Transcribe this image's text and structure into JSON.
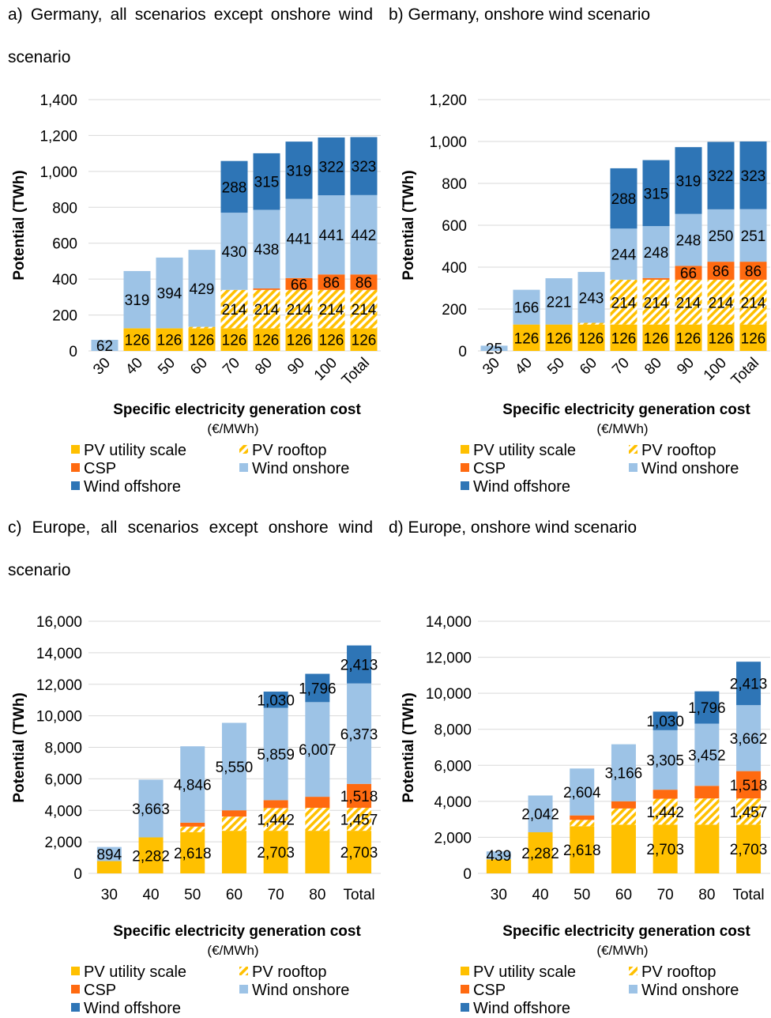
{
  "chart_data": [
    {
      "type": "bar",
      "stacked": true,
      "title": "a) Germany, all scenarios except onshore wind scenario",
      "xlabel": "Specific electricity generation cost",
      "xunit": "(€/MWh)",
      "ylabel": "Potential (TWh)",
      "ylim": [
        0,
        1400
      ],
      "ytick_step": 200,
      "yticks": [
        "0",
        "200",
        "400",
        "600",
        "800",
        "1,000",
        "1,200",
        "1,400"
      ],
      "tick_rotation": -45,
      "categories": [
        "30",
        "40",
        "50",
        "60",
        "70",
        "80",
        "90",
        "100",
        "Total"
      ],
      "series": [
        {
          "name": "PV utility scale",
          "values": [
            0,
            126,
            126,
            126,
            126,
            126,
            126,
            126,
            126
          ],
          "labels": [
            "",
            "126",
            "126",
            "126",
            "126",
            "126",
            "126",
            "126",
            "126"
          ]
        },
        {
          "name": "PV rooftop",
          "values": [
            0,
            0,
            0,
            8,
            214,
            214,
            214,
            214,
            214
          ],
          "labels": [
            "",
            "",
            "",
            "",
            "214",
            "214",
            "214",
            "214",
            "214"
          ]
        },
        {
          "name": "CSP",
          "values": [
            0,
            0,
            0,
            0,
            0,
            8,
            66,
            86,
            86
          ],
          "labels": [
            "",
            "",
            "",
            "",
            "",
            "",
            "66",
            "86",
            "86"
          ]
        },
        {
          "name": "Wind onshore",
          "values": [
            62,
            319,
            394,
            429,
            430,
            438,
            441,
            441,
            442
          ],
          "labels": [
            "62",
            "319",
            "394",
            "429",
            "430",
            "438",
            "441",
            "441",
            "442"
          ]
        },
        {
          "name": "Wind offshore",
          "values": [
            0,
            0,
            0,
            0,
            288,
            315,
            319,
            322,
            323
          ],
          "labels": [
            "",
            "",
            "",
            "",
            "288",
            "315",
            "319",
            "322",
            "323"
          ]
        }
      ]
    },
    {
      "type": "bar",
      "stacked": true,
      "title": "b) Germany, onshore wind scenario",
      "xlabel": "Specific electricity generation cost",
      "xunit": "(€/MWh)",
      "ylabel": "Potential (TWh)",
      "ylim": [
        0,
        1200
      ],
      "ytick_step": 200,
      "yticks": [
        "0",
        "200",
        "400",
        "600",
        "800",
        "1,000",
        "1,200"
      ],
      "tick_rotation": -45,
      "categories": [
        "30",
        "40",
        "50",
        "60",
        "70",
        "80",
        "90",
        "100",
        "Total"
      ],
      "series": [
        {
          "name": "PV utility scale",
          "values": [
            0,
            126,
            126,
            126,
            126,
            126,
            126,
            126,
            126
          ],
          "labels": [
            "",
            "126",
            "126",
            "126",
            "126",
            "126",
            "126",
            "126",
            "126"
          ]
        },
        {
          "name": "PV rooftop",
          "values": [
            0,
            0,
            0,
            8,
            214,
            214,
            214,
            214,
            214
          ],
          "labels": [
            "",
            "",
            "",
            "",
            "214",
            "214",
            "214",
            "214",
            "214"
          ]
        },
        {
          "name": "CSP",
          "values": [
            0,
            0,
            0,
            0,
            0,
            8,
            66,
            86,
            86
          ],
          "labels": [
            "",
            "",
            "",
            "",
            "",
            "",
            "66",
            "86",
            "86"
          ]
        },
        {
          "name": "Wind onshore",
          "values": [
            25,
            166,
            221,
            243,
            244,
            248,
            248,
            250,
            251
          ],
          "labels": [
            "25",
            "166",
            "221",
            "243",
            "244",
            "248",
            "248",
            "250",
            "251"
          ]
        },
        {
          "name": "Wind offshore",
          "values": [
            0,
            0,
            0,
            0,
            288,
            315,
            319,
            322,
            323
          ],
          "labels": [
            "",
            "",
            "",
            "",
            "288",
            "315",
            "319",
            "322",
            "323"
          ]
        }
      ]
    },
    {
      "type": "bar",
      "stacked": true,
      "title": "c) Europe, all scenarios except onshore wind scenario",
      "xlabel": "Specific electricity generation cost",
      "xunit": "(€/MWh)",
      "ylabel": "Potential (TWh)",
      "ylim": [
        0,
        16000
      ],
      "ytick_step": 2000,
      "yticks": [
        "0",
        "2,000",
        "4,000",
        "6,000",
        "8,000",
        "10,000",
        "12,000",
        "14,000",
        "16,000"
      ],
      "tick_rotation": 0,
      "categories": [
        "30",
        "40",
        "50",
        "60",
        "70",
        "80",
        "Total"
      ],
      "series": [
        {
          "name": "PV utility scale",
          "values": [
            780,
            2282,
            2618,
            2703,
            2703,
            2703,
            2703
          ],
          "labels": [
            "",
            "2,282",
            "2,618",
            "",
            "2,703",
            "",
            "2,703"
          ]
        },
        {
          "name": "PV rooftop",
          "values": [
            0,
            0,
            350,
            900,
            1442,
            1457,
            1457
          ],
          "labels": [
            "",
            "",
            "",
            "",
            "1,442",
            "",
            "1,457"
          ]
        },
        {
          "name": "CSP",
          "values": [
            0,
            0,
            250,
            400,
            500,
            700,
            1518
          ],
          "labels": [
            "",
            "",
            "",
            "",
            "",
            "",
            "1,518"
          ]
        },
        {
          "name": "Wind onshore",
          "values": [
            894,
            3663,
            4846,
            5550,
            5859,
            6007,
            6373
          ],
          "labels": [
            "894",
            "3,663",
            "4,846",
            "5,550",
            "5,859",
            "6,007",
            "6,373"
          ]
        },
        {
          "name": "Wind offshore",
          "values": [
            0,
            0,
            0,
            0,
            1030,
            1796,
            2413
          ],
          "labels": [
            "",
            "",
            "",
            "",
            "1,030",
            "1,796",
            "2,413"
          ]
        }
      ]
    },
    {
      "type": "bar",
      "stacked": true,
      "title": "d) Europe, onshore wind scenario",
      "xlabel": "Specific electricity generation cost",
      "xunit": "(€/MWh)",
      "ylabel": "Potential (TWh)",
      "ylim": [
        0,
        14000
      ],
      "ytick_step": 2000,
      "yticks": [
        "0",
        "2,000",
        "4,000",
        "6,000",
        "8,000",
        "10,000",
        "12,000",
        "14,000"
      ],
      "tick_rotation": 0,
      "categories": [
        "30",
        "40",
        "50",
        "60",
        "70",
        "80",
        "Total"
      ],
      "series": [
        {
          "name": "PV utility scale",
          "values": [
            780,
            2282,
            2618,
            2703,
            2703,
            2703,
            2703
          ],
          "labels": [
            "",
            "2,282",
            "2,618",
            "",
            "2,703",
            "",
            "2,703"
          ]
        },
        {
          "name": "PV rooftop",
          "values": [
            0,
            0,
            350,
            900,
            1442,
            1457,
            1457
          ],
          "labels": [
            "",
            "",
            "",
            "",
            "1,442",
            "",
            "1,457"
          ]
        },
        {
          "name": "CSP",
          "values": [
            0,
            0,
            250,
            400,
            500,
            700,
            1518
          ],
          "labels": [
            "",
            "",
            "",
            "",
            "",
            "",
            "1,518"
          ]
        },
        {
          "name": "Wind onshore",
          "values": [
            439,
            2042,
            2604,
            3166,
            3305,
            3452,
            3662
          ],
          "labels": [
            "439",
            "2,042",
            "2,604",
            "3,166",
            "3,305",
            "3,452",
            "3,662"
          ]
        },
        {
          "name": "Wind offshore",
          "values": [
            0,
            0,
            0,
            0,
            1030,
            1796,
            2413
          ],
          "labels": [
            "",
            "",
            "",
            "",
            "1,030",
            "1,796",
            "2,413"
          ]
        }
      ]
    }
  ],
  "legend": {
    "items": [
      "PV utility scale",
      "PV rooftop",
      "CSP",
      "Wind onshore",
      "Wind offshore"
    ],
    "placement": "bottom"
  },
  "colors": {
    "PV utility scale": "#FFC000",
    "PV rooftop": "#FFC000",
    "CSP": "#FF6A10",
    "Wind onshore": "#9DC3E6",
    "Wind offshore": "#2E75B6",
    "grid": "#D9D9D9"
  }
}
